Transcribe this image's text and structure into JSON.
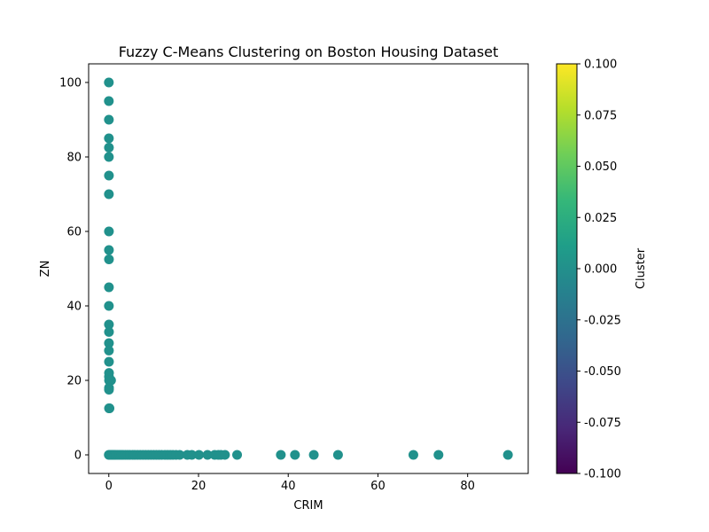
{
  "chart_data": {
    "type": "scatter",
    "title": "Fuzzy C-Means Clustering on Boston Housing Dataset",
    "xlabel": "CRIM",
    "ylabel": "ZN",
    "xlim": [
      -4.5,
      93.5
    ],
    "ylim": [
      -5,
      105
    ],
    "x_ticks": [
      0,
      20,
      40,
      60,
      80
    ],
    "y_ticks": [
      0,
      20,
      40,
      60,
      80,
      100
    ],
    "grid": false,
    "legend": "none",
    "point_color": "#21918c",
    "points": [
      [
        0.01,
        100
      ],
      [
        0.01,
        95
      ],
      [
        0.02,
        90
      ],
      [
        0.02,
        85
      ],
      [
        0.03,
        82.5
      ],
      [
        0.02,
        80
      ],
      [
        0.03,
        75
      ],
      [
        0.02,
        70
      ],
      [
        0.03,
        60
      ],
      [
        0.03,
        55
      ],
      [
        0.04,
        52.5
      ],
      [
        0.03,
        45
      ],
      [
        0.02,
        40
      ],
      [
        0.03,
        35
      ],
      [
        0.04,
        33
      ],
      [
        0.03,
        30
      ],
      [
        0.03,
        28
      ],
      [
        0.04,
        25
      ],
      [
        0.05,
        22
      ],
      [
        0.04,
        21
      ],
      [
        0.06,
        20
      ],
      [
        0.5,
        20
      ],
      [
        0.05,
        18
      ],
      [
        0.04,
        17.5
      ],
      [
        0.05,
        12.5
      ],
      [
        0.15,
        12.5
      ],
      [
        0.0,
        0
      ],
      [
        0.2,
        0
      ],
      [
        0.4,
        0
      ],
      [
        0.6,
        0
      ],
      [
        0.8,
        0
      ],
      [
        1.0,
        0
      ],
      [
        1.3,
        0
      ],
      [
        1.6,
        0
      ],
      [
        2.0,
        0
      ],
      [
        2.4,
        0
      ],
      [
        2.8,
        0
      ],
      [
        3.2,
        0
      ],
      [
        3.7,
        0
      ],
      [
        4.2,
        0
      ],
      [
        4.7,
        0
      ],
      [
        5.3,
        0
      ],
      [
        5.8,
        0
      ],
      [
        6.4,
        0
      ],
      [
        7.0,
        0
      ],
      [
        7.6,
        0
      ],
      [
        8.2,
        0
      ],
      [
        8.8,
        0
      ],
      [
        9.4,
        0
      ],
      [
        10.0,
        0
      ],
      [
        10.6,
        0
      ],
      [
        11.2,
        0
      ],
      [
        11.8,
        0
      ],
      [
        12.5,
        0
      ],
      [
        13.1,
        0
      ],
      [
        13.7,
        0
      ],
      [
        14.3,
        0
      ],
      [
        15.0,
        0
      ],
      [
        15.8,
        0
      ],
      [
        17.5,
        0
      ],
      [
        18.5,
        0
      ],
      [
        20.1,
        0
      ],
      [
        22.0,
        0
      ],
      [
        23.6,
        0
      ],
      [
        24.4,
        0
      ],
      [
        25.0,
        0
      ],
      [
        25.9,
        0
      ],
      [
        28.6,
        0
      ],
      [
        38.35,
        0
      ],
      [
        41.5,
        0
      ],
      [
        45.7,
        0
      ],
      [
        51.1,
        0
      ],
      [
        67.9,
        0
      ],
      [
        73.5,
        0
      ],
      [
        88.98,
        0
      ]
    ],
    "colorbar": {
      "label": "Cluster",
      "colormap": "viridis",
      "range": [
        -0.1,
        0.1
      ],
      "ticks": [
        "0.100",
        "0.075",
        "0.050",
        "0.025",
        "0.000",
        "-0.025",
        "-0.050",
        "-0.075",
        "-0.100"
      ],
      "colors": [
        "#440154",
        "#482878",
        "#3e4989",
        "#31688e",
        "#26828e",
        "#1f9e89",
        "#35b779",
        "#6ece58",
        "#b5de2b",
        "#fde725"
      ]
    }
  }
}
